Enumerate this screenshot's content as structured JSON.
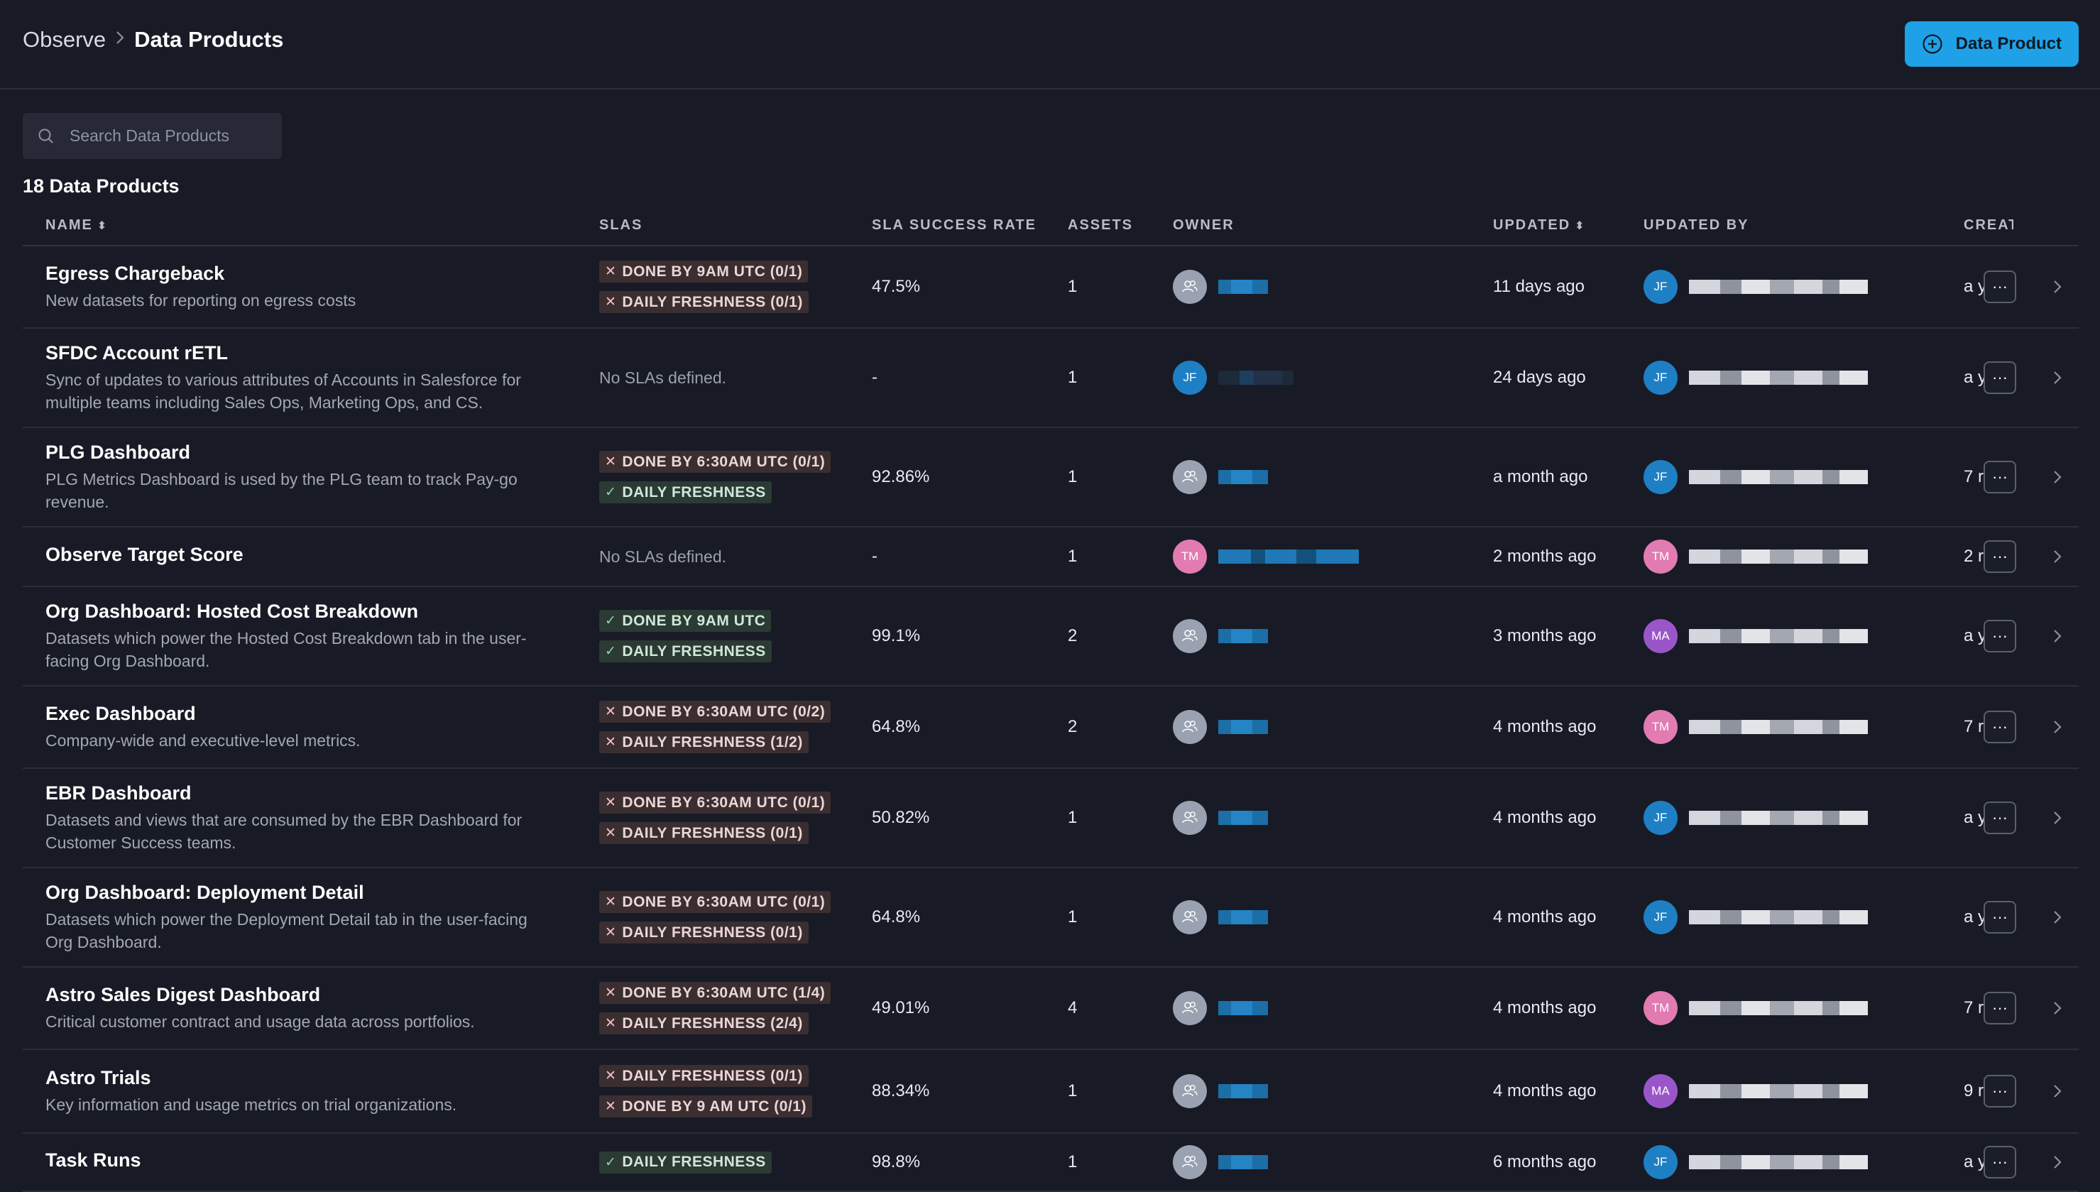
{
  "breadcrumb": {
    "parent": "Observe",
    "current": "Data Products"
  },
  "header": {
    "add_button_label": "Data Product"
  },
  "search": {
    "placeholder": "Search Data Products"
  },
  "count_label": "18 Data Products",
  "columns": {
    "name": "NAME",
    "slas": "SLAS",
    "success": "SLA SUCCESS RATE",
    "assets": "ASSETS",
    "owner": "OWNER",
    "updated": "UPDATED",
    "updated_by": "UPDATED BY",
    "created": "CREAT"
  },
  "icons": {
    "search": "search-icon",
    "add": "plus-circle-icon",
    "sort": "sort-icon",
    "menu": "ellipsis-icon",
    "chevron": "chevron-right-icon",
    "group": "users-icon"
  },
  "colors": {
    "accent": "#1ea1e6",
    "fail_chip": "#3b2e30",
    "ok_chip": "#2b3a33",
    "jf": "#1f7fc4",
    "tm": "#e27bb2",
    "ma": "#9a56c9"
  },
  "rows": [
    {
      "name": "Egress Chargeback",
      "description": "New datasets for reporting on egress costs",
      "slas": [
        {
          "status": "fail",
          "label": "DONE BY 9AM UTC (0/1)"
        },
        {
          "status": "fail",
          "label": "DAILY FRESHNESS (0/1)"
        }
      ],
      "no_slas": "",
      "success_rate": "47.5%",
      "assets": "1",
      "owner_initials": "",
      "owner_type": "group",
      "updated": "11 days ago",
      "updated_by_initials": "JF",
      "updated_by_type": "jf",
      "created": "a y"
    },
    {
      "name": "SFDC Account rETL",
      "description": "Sync of updates to various attributes of Accounts in Salesforce for multiple teams including Sales Ops, Marketing Ops, and CS.",
      "slas": [],
      "no_slas": "No SLAs defined.",
      "success_rate": "-",
      "assets": "1",
      "owner_initials": "JF",
      "owner_type": "jf",
      "updated": "24 days ago",
      "updated_by_initials": "JF",
      "updated_by_type": "jf",
      "created": "a y"
    },
    {
      "name": "PLG Dashboard",
      "description": "PLG Metrics Dashboard is used by the PLG team to track Pay-go revenue.",
      "slas": [
        {
          "status": "fail",
          "label": "DONE BY 6:30AM UTC (0/1)"
        },
        {
          "status": "ok",
          "label": "DAILY FRESHNESS"
        }
      ],
      "no_slas": "",
      "success_rate": "92.86%",
      "assets": "1",
      "owner_initials": "",
      "owner_type": "group",
      "updated": "a month ago",
      "updated_by_initials": "JF",
      "updated_by_type": "jf",
      "created": "7 r"
    },
    {
      "name": "Observe Target Score",
      "description": "",
      "slas": [],
      "no_slas": "No SLAs defined.",
      "success_rate": "-",
      "assets": "1",
      "owner_initials": "TM",
      "owner_type": "tm",
      "updated": "2 months ago",
      "updated_by_initials": "TM",
      "updated_by_type": "tm",
      "created": "2 r"
    },
    {
      "name": "Org Dashboard: Hosted Cost Breakdown",
      "description": "Datasets which power the Hosted Cost Breakdown tab in the user-facing Org Dashboard.",
      "slas": [
        {
          "status": "ok",
          "label": "DONE BY 9AM UTC"
        },
        {
          "status": "ok",
          "label": "DAILY FRESHNESS"
        }
      ],
      "no_slas": "",
      "success_rate": "99.1%",
      "assets": "2",
      "owner_initials": "",
      "owner_type": "group",
      "updated": "3 months ago",
      "updated_by_initials": "MA",
      "updated_by_type": "ma",
      "created": "a y"
    },
    {
      "name": "Exec Dashboard",
      "description": "Company-wide and executive-level metrics.",
      "slas": [
        {
          "status": "fail",
          "label": "DONE BY 6:30AM UTC (0/2)"
        },
        {
          "status": "fail",
          "label": "DAILY FRESHNESS (1/2)"
        }
      ],
      "no_slas": "",
      "success_rate": "64.8%",
      "assets": "2",
      "owner_initials": "",
      "owner_type": "group",
      "updated": "4 months ago",
      "updated_by_initials": "TM",
      "updated_by_type": "tm",
      "created": "7 r"
    },
    {
      "name": "EBR Dashboard",
      "description": "Datasets and views that are consumed by the EBR Dashboard for Customer Success teams.",
      "slas": [
        {
          "status": "fail",
          "label": "DONE BY 6:30AM UTC (0/1)"
        },
        {
          "status": "fail",
          "label": "DAILY FRESHNESS (0/1)"
        }
      ],
      "no_slas": "",
      "success_rate": "50.82%",
      "assets": "1",
      "owner_initials": "",
      "owner_type": "group",
      "updated": "4 months ago",
      "updated_by_initials": "JF",
      "updated_by_type": "jf",
      "created": "a y"
    },
    {
      "name": "Org Dashboard: Deployment Detail",
      "description": "Datasets which power the Deployment Detail tab in the user-facing Org Dashboard.",
      "slas": [
        {
          "status": "fail",
          "label": "DONE BY 6:30AM UTC (0/1)"
        },
        {
          "status": "fail",
          "label": "DAILY FRESHNESS (0/1)"
        }
      ],
      "no_slas": "",
      "success_rate": "64.8%",
      "assets": "1",
      "owner_initials": "",
      "owner_type": "group",
      "updated": "4 months ago",
      "updated_by_initials": "JF",
      "updated_by_type": "jf",
      "created": "a y"
    },
    {
      "name": "Astro Sales Digest Dashboard",
      "description": "Critical customer contract and usage data across portfolios.",
      "slas": [
        {
          "status": "fail",
          "label": "DONE BY 6:30AM UTC (1/4)"
        },
        {
          "status": "fail",
          "label": "DAILY FRESHNESS (2/4)"
        }
      ],
      "no_slas": "",
      "success_rate": "49.01%",
      "assets": "4",
      "owner_initials": "",
      "owner_type": "group",
      "updated": "4 months ago",
      "updated_by_initials": "TM",
      "updated_by_type": "tm",
      "created": "7 r"
    },
    {
      "name": "Astro Trials",
      "description": "Key information and usage metrics on trial organizations.",
      "slas": [
        {
          "status": "fail",
          "label": "DAILY FRESHNESS (0/1)"
        },
        {
          "status": "fail",
          "label": "DONE BY 9 AM UTC (0/1)"
        }
      ],
      "no_slas": "",
      "success_rate": "88.34%",
      "assets": "1",
      "owner_initials": "",
      "owner_type": "group",
      "updated": "4 months ago",
      "updated_by_initials": "MA",
      "updated_by_type": "ma",
      "created": "9 r"
    },
    {
      "name": "Task Runs",
      "description": "",
      "slas": [
        {
          "status": "ok",
          "label": "DAILY FRESHNESS"
        }
      ],
      "no_slas": "",
      "success_rate": "98.8%",
      "assets": "1",
      "owner_initials": "",
      "owner_type": "group",
      "updated": "6 months ago",
      "updated_by_initials": "JF",
      "updated_by_type": "jf",
      "created": "a y"
    }
  ]
}
